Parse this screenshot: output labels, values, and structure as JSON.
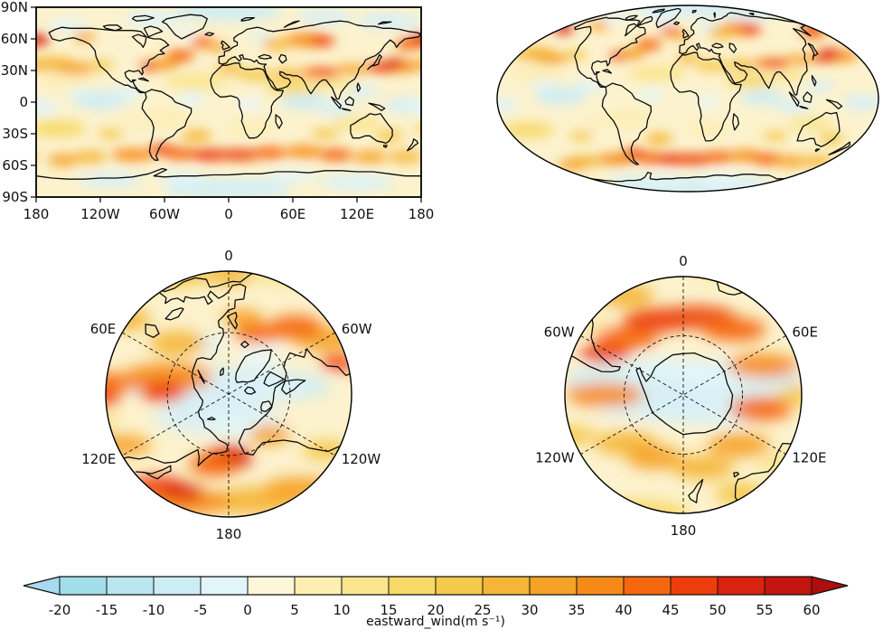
{
  "chart_data": {
    "type": "heatmap",
    "title": "",
    "variable": "eastward_wind",
    "units": "m s⁻¹",
    "colorbar_label": "eastward_wind(m s⁻¹)",
    "levels": [
      -20,
      -15,
      -10,
      -5,
      0,
      5,
      10,
      15,
      20,
      25,
      30,
      35,
      40,
      45,
      50,
      55,
      60
    ],
    "extend": "both",
    "palette": {
      "under": "#a9d9ee",
      "colors": [
        "#a2dee9",
        "#b9e6ef",
        "#cdedf4",
        "#e2f5f9",
        "#fdf6d9",
        "#fdeeb2",
        "#fae58e",
        "#f7d968",
        "#f5c94c",
        "#f5b637",
        "#f6a226",
        "#f78a17",
        "#f5670f",
        "#ee3d0d",
        "#d92210",
        "#c2150f"
      ],
      "over": "#ae0f0c"
    },
    "panels": [
      {
        "projection": "PlateCarree",
        "extent": [
          -180,
          180,
          -90,
          90
        ],
        "xtick_labels": [
          "180",
          "120W",
          "60W",
          "0",
          "60E",
          "120E",
          "180"
        ],
        "ytick_labels": [
          "90N",
          "60N",
          "30N",
          "0",
          "30S",
          "60S",
          "90S"
        ]
      },
      {
        "projection": "Mollweide",
        "central_longitude": 0
      },
      {
        "projection": "NorthPolarStereo",
        "boundary_latitude": 30,
        "dashed_circle_latitude": 60,
        "meridian_labels": [
          "0",
          "60E",
          "60W",
          "120E",
          "120W",
          "180"
        ]
      },
      {
        "projection": "SouthPolarStereo",
        "boundary_latitude": -30,
        "dashed_circle_latitude": -60,
        "meridian_labels": [
          "0",
          "60W",
          "60E",
          "120W",
          "120E",
          "180"
        ]
      }
    ],
    "field_description": "Strong westerly jets (orange/red, 20-60 m s⁻¹) near 30-40N and 40-60S; weak or easterly winds (pale blue, -20-0 m s⁻¹) near the equator and poles; coastlines overlaid in black."
  },
  "panels": {
    "platecarree": {
      "yticks": [
        "90N",
        "60N",
        "30N",
        "0",
        "30S",
        "60S",
        "90S"
      ],
      "xticks": [
        "180",
        "120W",
        "60W",
        "0",
        "60E",
        "120E",
        "180"
      ]
    },
    "north_polar": {
      "labels": [
        {
          "az": 0,
          "text": "0"
        },
        {
          "az": -60,
          "text": "60E"
        },
        {
          "az": 60,
          "text": "60W"
        },
        {
          "az": -120,
          "text": "120E"
        },
        {
          "az": 120,
          "text": "120W"
        },
        {
          "az": 180,
          "text": "180"
        }
      ]
    },
    "south_polar": {
      "labels": [
        {
          "az": 0,
          "text": "0"
        },
        {
          "az": -60,
          "text": "60W"
        },
        {
          "az": 60,
          "text": "60E"
        },
        {
          "az": -120,
          "text": "120W"
        },
        {
          "az": 120,
          "text": "120E"
        },
        {
          "az": 180,
          "text": "180"
        }
      ]
    }
  },
  "colorbar": {
    "ticks": [
      "-20",
      "-15",
      "-10",
      "-5",
      "0",
      "5",
      "10",
      "15",
      "20",
      "25",
      "30",
      "35",
      "40",
      "45",
      "50",
      "55",
      "60"
    ],
    "label": "eastward_wind(m s⁻¹)",
    "under": "#a9d9ee",
    "over": "#ae0f0c",
    "colors": [
      "#a2dee9",
      "#b9e6ef",
      "#cdedf4",
      "#e2f5f9",
      "#fdf6d9",
      "#fdeeb2",
      "#fae58e",
      "#f7d968",
      "#f5c94c",
      "#f5b637",
      "#f6a226",
      "#f78a17",
      "#f5670f",
      "#ee3d0d",
      "#d92210",
      "#c2150f"
    ],
    "outline": "#111111"
  }
}
